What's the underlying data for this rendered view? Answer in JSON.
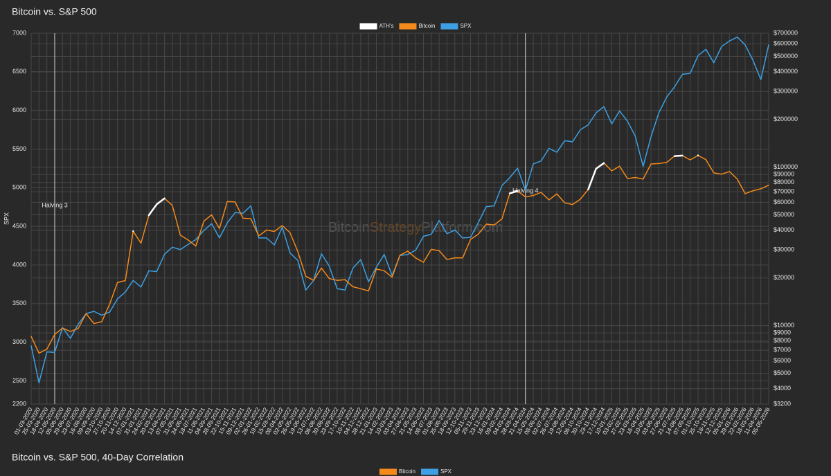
{
  "chart_data": [
    {
      "type": "line",
      "title": "Bitcoin vs. S&P 500",
      "y_label": "SPX",
      "categories": [
        "01-03-2020",
        "25-03-2020",
        "18-04-2020",
        "12-05-2020",
        "05-06-2020",
        "29-06-2020",
        "23-07-2020",
        "16-08-2020",
        "09-09-2020",
        "03-10-2020",
        "27-10-2020",
        "20-11-2020",
        "14-12-2020",
        "07-01-2021",
        "31-01-2021",
        "24-02-2021",
        "20-03-2021",
        "13-04-2021",
        "07-05-2021",
        "31-05-2021",
        "24-06-2021",
        "18-07-2021",
        "11-08-2021",
        "04-09-2021",
        "28-09-2021",
        "22-10-2021",
        "15-11-2021",
        "09-12-2021",
        "02-01-2022",
        "26-01-2022",
        "19-02-2022",
        "15-03-2022",
        "08-04-2022",
        "02-05-2022",
        "26-05-2022",
        "19-06-2022",
        "13-07-2022",
        "06-08-2022",
        "30-08-2022",
        "23-09-2022",
        "17-10-2022",
        "10-11-2022",
        "04-12-2022",
        "28-12-2022",
        "21-01-2023",
        "14-02-2023",
        "10-03-2023",
        "03-04-2023",
        "27-04-2023",
        "21-05-2023",
        "14-06-2023",
        "08-07-2023",
        "01-08-2023",
        "25-08-2023",
        "18-09-2023",
        "12-10-2023",
        "05-11-2023",
        "29-11-2023",
        "23-12-2023",
        "16-01-2024",
        "09-02-2024",
        "04-03-2024",
        "28-03-2024",
        "21-04-2024",
        "15-05-2024",
        "08-06-2024",
        "02-07-2024",
        "26-07-2024",
        "19-08-2024",
        "12-09-2024",
        "06-10-2024",
        "30-10-2024",
        "23-11-2024",
        "17-12-2024",
        "10-01-2025",
        "03-02-2025",
        "27-02-2025",
        "23-03-2025",
        "16-04-2025",
        "10-05-2025",
        "03-06-2025",
        "27-06-2025",
        "21-07-2025",
        "14-08-2025",
        "07-09-2025",
        "01-10-2025",
        "25-10-2025",
        "18-11-2025",
        "12-12-2025",
        "05-01-2026",
        "29-01-2026",
        "22-02-2026",
        "18-03-2026",
        "11-04-2026",
        "05-05-2026"
      ],
      "series": [
        {
          "name": "ATH's",
          "color": "#ffffff",
          "axis": "y2",
          "values": [
            null,
            null,
            null,
            null,
            null,
            null,
            null,
            null,
            null,
            null,
            null,
            null,
            null,
            39400,
            null,
            49700,
            58300,
            63500,
            null,
            null,
            null,
            null,
            null,
            null,
            null,
            null,
            null,
            null,
            null,
            null,
            null,
            null,
            null,
            null,
            null,
            null,
            null,
            null,
            null,
            null,
            null,
            null,
            null,
            null,
            null,
            null,
            null,
            null,
            null,
            null,
            null,
            null,
            null,
            null,
            null,
            null,
            null,
            null,
            null,
            null,
            null,
            68300,
            70700,
            null,
            null,
            null,
            null,
            null,
            null,
            null,
            null,
            72300,
            97700,
            106100,
            null,
            null,
            null,
            null,
            null,
            null,
            null,
            null,
            117400,
            118300,
            null,
            118600,
            null,
            null,
            null,
            null,
            null,
            null,
            null,
            null,
            null
          ]
        },
        {
          "name": "Bitcoin",
          "color": "#f48a1c",
          "axis": "y2",
          "values": [
            8550,
            6700,
            7100,
            8800,
            9650,
            9190,
            9600,
            11900,
            10300,
            10600,
            13650,
            18700,
            19250,
            39400,
            33100,
            49700,
            58300,
            63500,
            57400,
            37300,
            34700,
            31800,
            45600,
            50000,
            41000,
            60700,
            60300,
            47600,
            47300,
            36800,
            40100,
            39300,
            42800,
            38500,
            29200,
            20500,
            19300,
            23100,
            19800,
            19300,
            19500,
            17600,
            17100,
            16550,
            22800,
            22200,
            20200,
            27800,
            29500,
            26750,
            25100,
            30300,
            29700,
            26100,
            26800,
            26750,
            35000,
            37800,
            43700,
            43100,
            47100,
            68300,
            70700,
            64900,
            66200,
            69300,
            62100,
            67900,
            59500,
            58100,
            62800,
            72300,
            97700,
            106100,
            94700,
            101400,
            84700,
            86100,
            84000,
            104700,
            105400,
            107100,
            117400,
            118300,
            111100,
            118600,
            111500,
            92000,
            90300,
            93800,
            84000,
            68000,
            71000,
            73000,
            77000
          ]
        },
        {
          "name": "SPX",
          "color": "#3ea0e4",
          "values": [
            2954,
            2475,
            2875,
            2870,
            3190,
            3050,
            3235,
            3370,
            3400,
            3350,
            3390,
            3560,
            3650,
            3800,
            3715,
            3925,
            3915,
            4140,
            4230,
            4200,
            4265,
            4330,
            4445,
            4535,
            4350,
            4545,
            4680,
            4670,
            4766,
            4350,
            4350,
            4260,
            4490,
            4155,
            4057,
            3675,
            3800,
            4145,
            3985,
            3693,
            3677,
            3956,
            4070,
            3783,
            3972,
            4136,
            3862,
            4124,
            4135,
            4192,
            4372,
            4398,
            4576,
            4405,
            4453,
            4349,
            4358,
            4550,
            4754,
            4766,
            5026,
            5130,
            5254,
            4967,
            5308,
            5347,
            5509,
            5459,
            5608,
            5595,
            5751,
            5813,
            5969,
            6050,
            5827,
            5994,
            5861,
            5667,
            5275,
            5660,
            5970,
            6173,
            6305,
            6468,
            6481,
            6711,
            6791,
            6617,
            6827,
            6900,
            6950,
            6850,
            6650,
            6400,
            6850
          ]
        }
      ],
      "ylim": [
        2200,
        7000
      ],
      "yticks": [
        2200,
        2500,
        3000,
        3500,
        4000,
        4500,
        5000,
        5500,
        6000,
        6500,
        7000
      ],
      "y2lim": [
        3200,
        700000
      ],
      "y2log": true,
      "y2ticks": [
        {
          "value": 3200,
          "label": "$3200"
        },
        {
          "value": 4000,
          "label": "$4000"
        },
        {
          "value": 5000,
          "label": "$5000"
        },
        {
          "value": 6000,
          "label": "$6000"
        },
        {
          "value": 7000,
          "label": "$7000"
        },
        {
          "value": 8000,
          "label": "$8000"
        },
        {
          "value": 9000,
          "label": "$9000"
        },
        {
          "value": 10000,
          "label": "$10000"
        },
        {
          "value": 20000,
          "label": "$20000"
        },
        {
          "value": 30000,
          "label": "$30000"
        },
        {
          "value": 40000,
          "label": "$40000"
        },
        {
          "value": 50000,
          "label": "$50000"
        },
        {
          "value": 60000,
          "label": "$60000"
        },
        {
          "value": 70000,
          "label": "$70000"
        },
        {
          "value": 80000,
          "label": "$80000"
        },
        {
          "value": 90000,
          "label": "$90000"
        },
        {
          "value": 100000,
          "label": "$100000"
        },
        {
          "value": 200000,
          "label": "$200000"
        },
        {
          "value": 300000,
          "label": "$300000"
        },
        {
          "value": 400000,
          "label": "$400000"
        },
        {
          "value": 500000,
          "label": "$500000"
        },
        {
          "value": 600000,
          "label": "$600000"
        },
        {
          "value": 700000,
          "label": "$700000"
        }
      ],
      "grid": true,
      "annotations": [
        {
          "text": "Halving 3",
          "x": "12-05-2020"
        },
        {
          "text": "Halving 4",
          "x": "21-04-2024"
        }
      ],
      "watermark": [
        "Bitcoin",
        "Strategy",
        "Platform.com"
      ]
    },
    {
      "type": "line",
      "title": "Bitcoin vs. S&P 500, 40-Day Correlation",
      "series": [
        {
          "name": "Bitcoin",
          "color": "#f48a1c"
        },
        {
          "name": "SPX",
          "color": "#3ea0e4"
        }
      ]
    }
  ]
}
